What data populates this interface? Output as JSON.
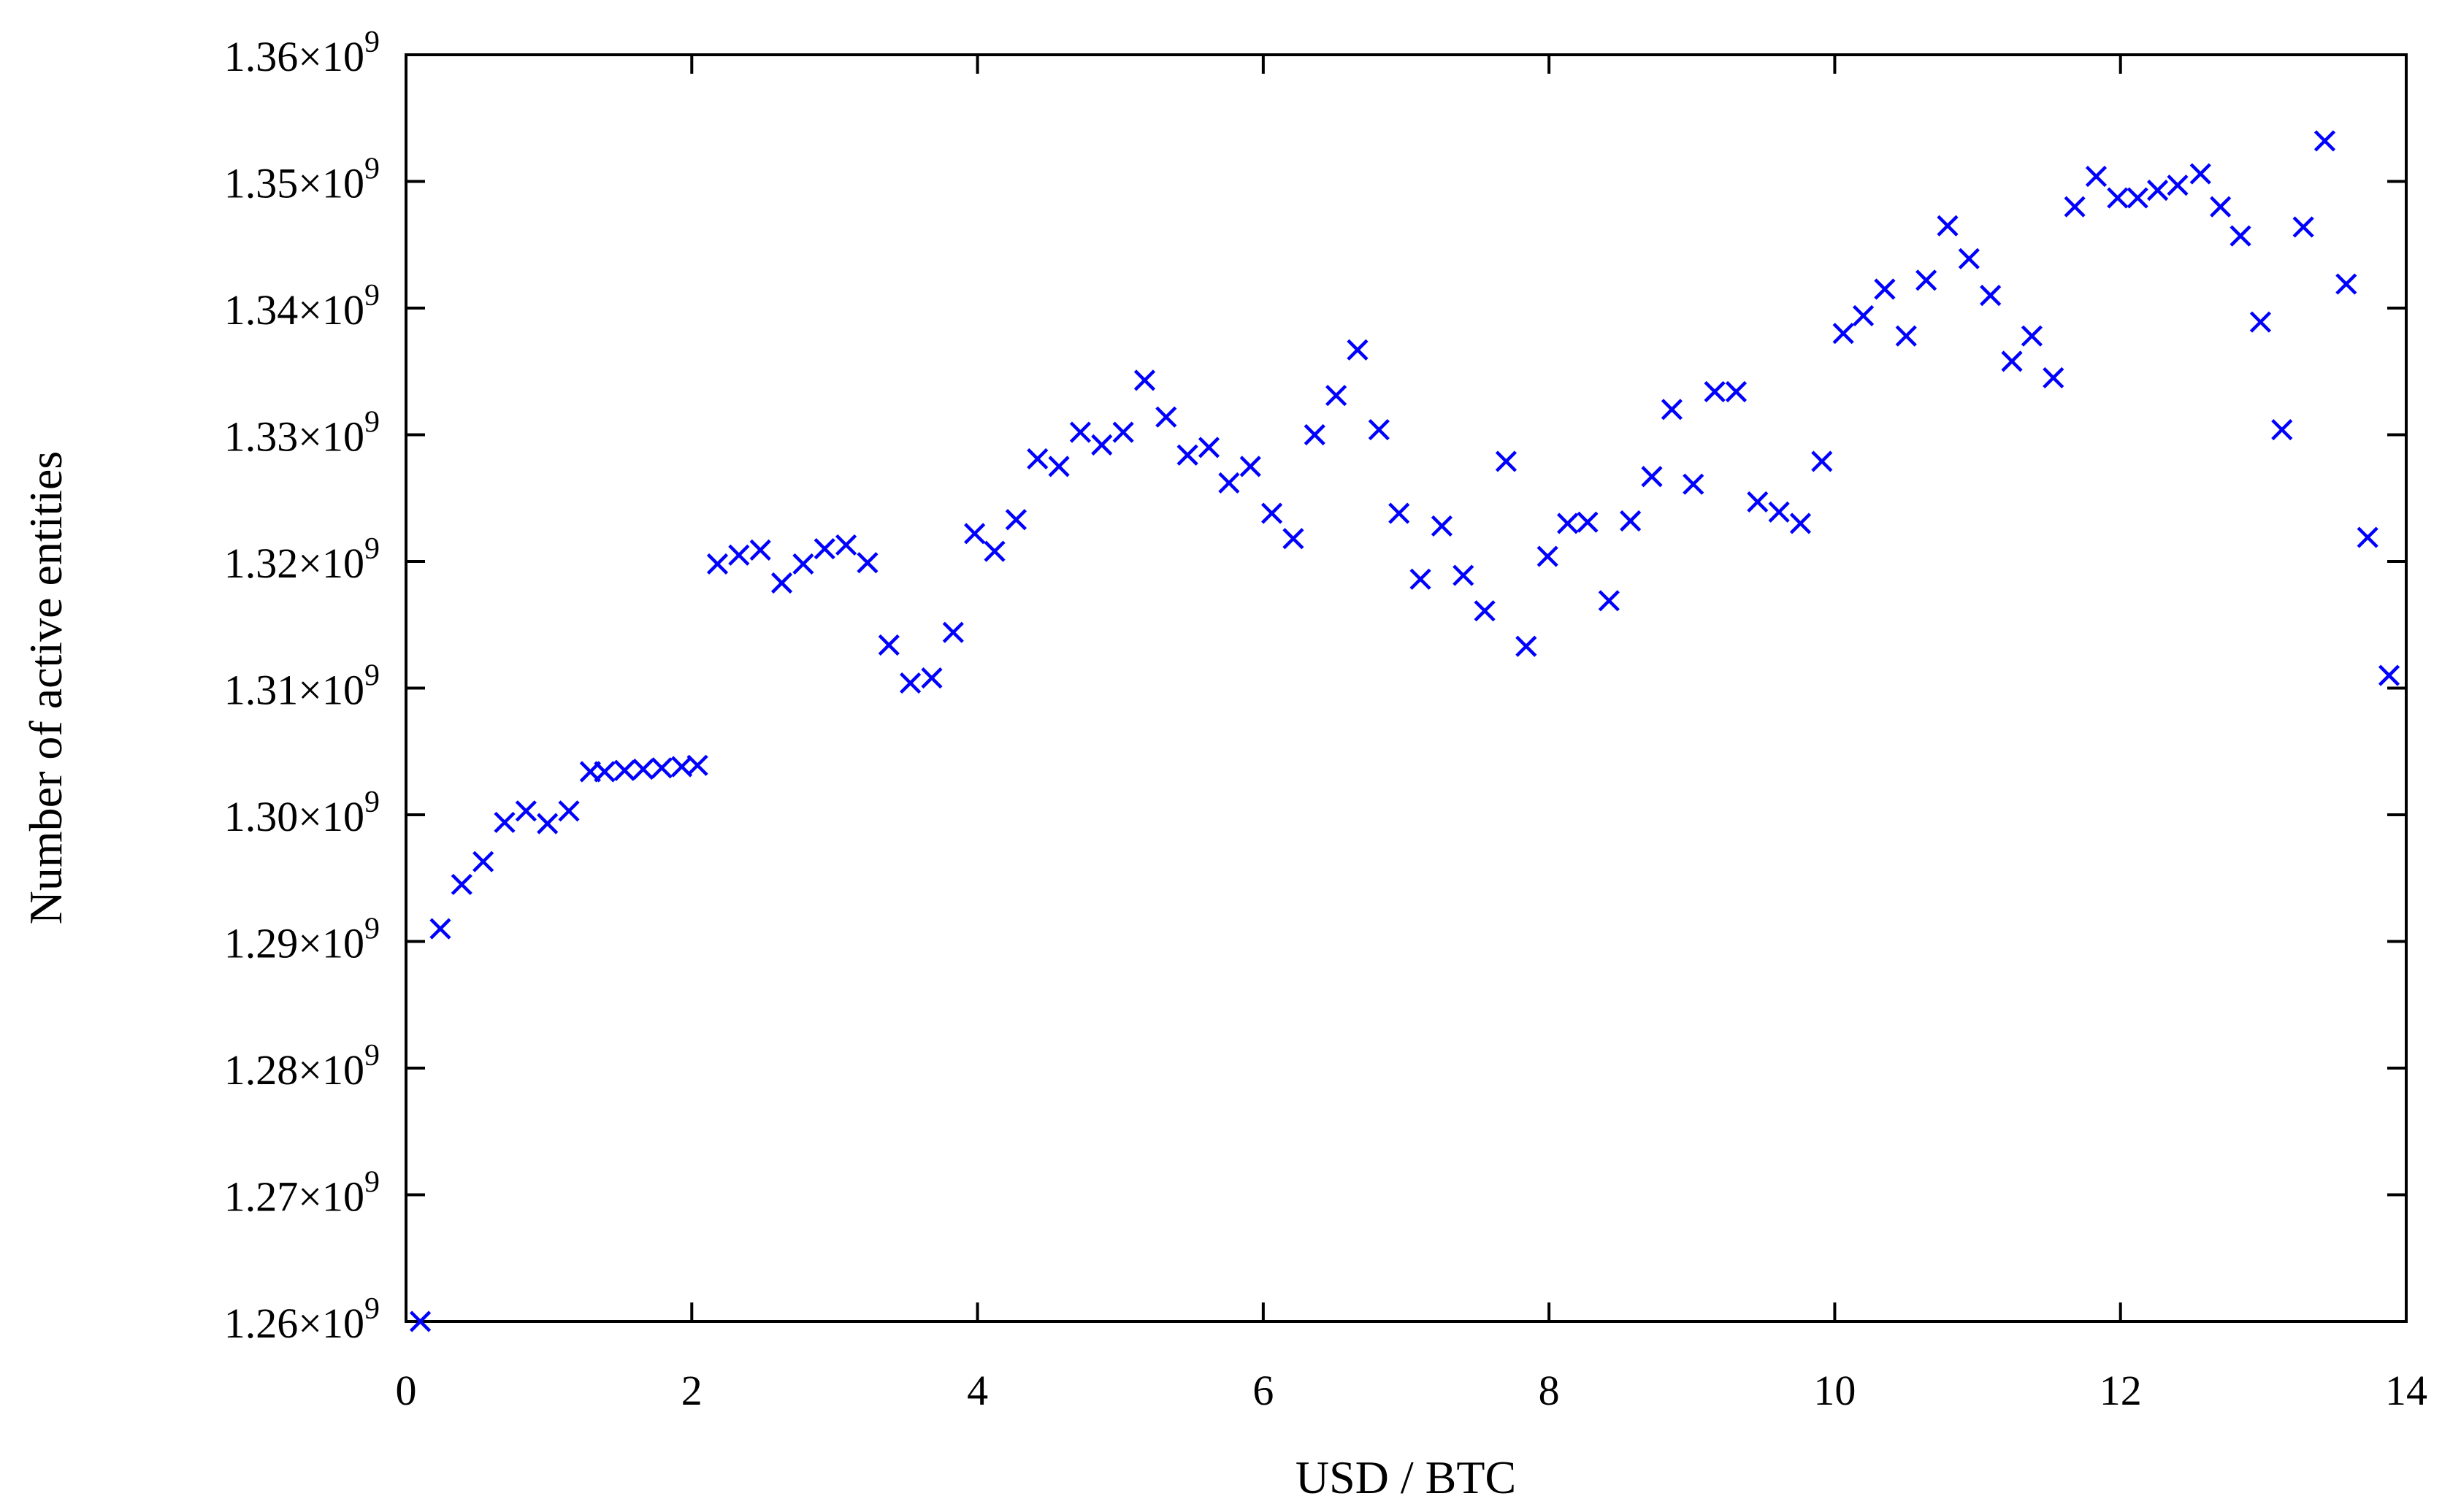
{
  "chart_data": {
    "type": "scatter",
    "title": "",
    "xlabel": "USD / BTC",
    "ylabel": "Number of active entities",
    "xlim": [
      0,
      14
    ],
    "ylim": [
      1260000000.0,
      1360000000.0
    ],
    "grid": false,
    "marker": "x",
    "color": "#0000ff",
    "x_ticks": [
      {
        "value": 0,
        "label": "0"
      },
      {
        "value": 2,
        "label": "2"
      },
      {
        "value": 4,
        "label": "4"
      },
      {
        "value": 6,
        "label": "6"
      },
      {
        "value": 8,
        "label": "8"
      },
      {
        "value": 10,
        "label": "10"
      },
      {
        "value": 12,
        "label": "12"
      },
      {
        "value": 14,
        "label": "14"
      }
    ],
    "y_ticks": [
      {
        "value": 1260000000.0,
        "mantissa": "1.26",
        "times": "×10",
        "exp": "9"
      },
      {
        "value": 1270000000.0,
        "mantissa": "1.27",
        "times": "×10",
        "exp": "9"
      },
      {
        "value": 1280000000.0,
        "mantissa": "1.28",
        "times": "×10",
        "exp": "9"
      },
      {
        "value": 1290000000.0,
        "mantissa": "1.29",
        "times": "×10",
        "exp": "9"
      },
      {
        "value": 1300000000.0,
        "mantissa": "1.30",
        "times": "×10",
        "exp": "9"
      },
      {
        "value": 1310000000.0,
        "mantissa": "1.31",
        "times": "×10",
        "exp": "9"
      },
      {
        "value": 1320000000.0,
        "mantissa": "1.32",
        "times": "×10",
        "exp": "9"
      },
      {
        "value": 1330000000.0,
        "mantissa": "1.33",
        "times": "×10",
        "exp": "9"
      },
      {
        "value": 1340000000.0,
        "mantissa": "1.34",
        "times": "×10",
        "exp": "9"
      },
      {
        "value": 1350000000.0,
        "mantissa": "1.35",
        "times": "×10",
        "exp": "9"
      },
      {
        "value": 1360000000.0,
        "mantissa": "1.36",
        "times": "×10",
        "exp": "9"
      }
    ],
    "series": [
      {
        "points": [
          [
            0.1,
            1260000000.0
          ],
          [
            0.24,
            1291000000.0
          ],
          [
            0.39,
            1294500000.0
          ],
          [
            0.54,
            1296300000.0
          ],
          [
            0.69,
            1299400000.0
          ],
          [
            0.84,
            1300300000.0
          ],
          [
            0.99,
            1299300000.0
          ],
          [
            1.14,
            1300300000.0
          ],
          [
            1.29,
            1303400000.0
          ],
          [
            1.39,
            1303400000.0
          ],
          [
            1.53,
            1303500000.0
          ],
          [
            1.66,
            1303600000.0
          ],
          [
            1.79,
            1303700000.0
          ],
          [
            1.93,
            1303800000.0
          ],
          [
            2.04,
            1303900000.0
          ],
          [
            2.18,
            1319800000.0
          ],
          [
            2.33,
            1320500000.0
          ],
          [
            2.48,
            1320900000.0
          ],
          [
            2.63,
            1318300000.0
          ],
          [
            2.78,
            1319800000.0
          ],
          [
            2.93,
            1321000000.0
          ],
          [
            3.08,
            1321300000.0
          ],
          [
            3.23,
            1319900000.0
          ],
          [
            3.38,
            1313400000.0
          ],
          [
            3.53,
            1310400000.0
          ],
          [
            3.68,
            1310800000.0
          ],
          [
            3.83,
            1314400000.0
          ],
          [
            3.98,
            1322200000.0
          ],
          [
            4.12,
            1320800000.0
          ],
          [
            4.27,
            1323300000.0
          ],
          [
            4.42,
            1328100000.0
          ],
          [
            4.57,
            1327500000.0
          ],
          [
            4.72,
            1330200000.0
          ],
          [
            4.87,
            1329200000.0
          ],
          [
            5.02,
            1330200000.0
          ],
          [
            5.17,
            1334300000.0
          ],
          [
            5.32,
            1331400000.0
          ],
          [
            5.47,
            1328400000.0
          ],
          [
            5.62,
            1329000000.0
          ],
          [
            5.76,
            1326200000.0
          ],
          [
            5.91,
            1327500000.0
          ],
          [
            6.06,
            1323800000.0
          ],
          [
            6.21,
            1321800000.0
          ],
          [
            6.36,
            1330000000.0
          ],
          [
            6.51,
            1333100000.0
          ],
          [
            6.66,
            1336700000.0
          ],
          [
            6.81,
            1330400000.0
          ],
          [
            6.95,
            1323800000.0
          ],
          [
            7.1,
            1318600000.0
          ],
          [
            7.25,
            1322800000.0
          ],
          [
            7.4,
            1318900000.0
          ],
          [
            7.55,
            1316100000.0
          ],
          [
            7.7,
            1327900000.0
          ],
          [
            7.84,
            1313300000.0
          ],
          [
            7.99,
            1320400000.0
          ],
          [
            8.13,
            1323000000.0
          ],
          [
            8.27,
            1323100000.0
          ],
          [
            8.42,
            1316900000.0
          ],
          [
            8.57,
            1323200000.0
          ],
          [
            8.72,
            1326700000.0
          ],
          [
            8.86,
            1332000000.0
          ],
          [
            9.01,
            1326100000.0
          ],
          [
            9.16,
            1333400000.0
          ],
          [
            9.31,
            1333400000.0
          ],
          [
            9.46,
            1324700000.0
          ],
          [
            9.61,
            1323900000.0
          ],
          [
            9.76,
            1323000000.0
          ],
          [
            9.91,
            1327900000.0
          ],
          [
            10.06,
            1338000000.0
          ],
          [
            10.2,
            1339400000.0
          ],
          [
            10.35,
            1341500000.0
          ],
          [
            10.5,
            1337800000.0
          ],
          [
            10.64,
            1342200000.0
          ],
          [
            10.79,
            1346500000.0
          ],
          [
            10.94,
            1343900000.0
          ],
          [
            11.09,
            1341000000.0
          ],
          [
            11.24,
            1335800000.0
          ],
          [
            11.38,
            1337800000.0
          ],
          [
            11.53,
            1334500000.0
          ],
          [
            11.68,
            1348000000.0
          ],
          [
            11.83,
            1350400000.0
          ],
          [
            11.98,
            1348700000.0
          ],
          [
            12.12,
            1348700000.0
          ],
          [
            12.26,
            1349300000.0
          ],
          [
            12.4,
            1349700000.0
          ],
          [
            12.56,
            1350600000.0
          ],
          [
            12.7,
            1348000000.0
          ],
          [
            12.84,
            1345700000.0
          ],
          [
            12.98,
            1338900000.0
          ],
          [
            13.13,
            1330400000.0
          ],
          [
            13.28,
            1346400000.0
          ],
          [
            13.43,
            1353200000.0
          ],
          [
            13.58,
            1341900000.0
          ],
          [
            13.73,
            1321900000.0
          ],
          [
            13.88,
            1311000000.0
          ]
        ]
      }
    ]
  }
}
